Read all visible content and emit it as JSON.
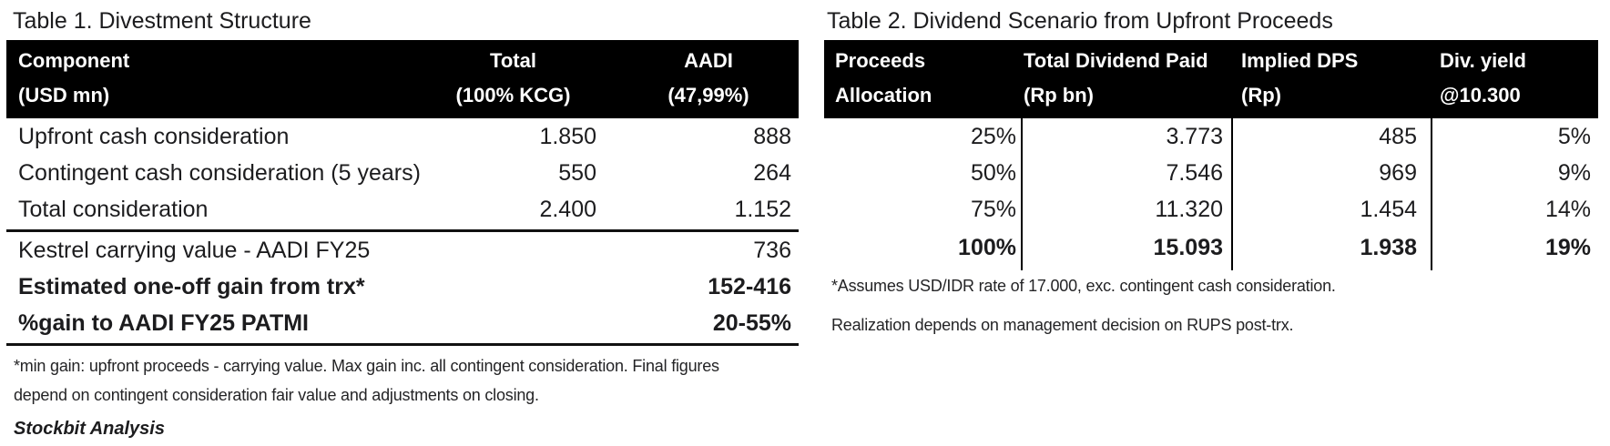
{
  "table1": {
    "title": "Table 1. Divestment Structure",
    "header": {
      "col1_line1": "Component",
      "col1_line2": "(USD mn)",
      "col2_line1": "Total",
      "col2_line2": "(100% KCG)",
      "col3_line1": "AADI",
      "col3_line2": "(47,99%)"
    },
    "rows": [
      {
        "label": "Upfront cash consideration",
        "total": "1.850",
        "aadi": "888"
      },
      {
        "label": "Contingent cash consideration (5 years)",
        "total": "550",
        "aadi": "264"
      },
      {
        "label": "Total consideration",
        "total": "2.400",
        "aadi": "1.152"
      },
      {
        "label": "Kestrel carrying value - AADI FY25",
        "total": "",
        "aadi": "736"
      },
      {
        "label": "Estimated one-off gain from trx*",
        "total": "",
        "aadi": "152-416"
      },
      {
        "label": "%gain to AADI FY25 PATMI",
        "total": "",
        "aadi": "20-55%"
      }
    ],
    "footnote_line1": "*min gain: upfront proceeds - carrying value. Max gain inc. all contingent consideration. Final figures",
    "footnote_line2": "depend on contingent consideration fair value and adjustments on closing.",
    "attribution": "Stockbit Analysis"
  },
  "table2": {
    "title": "Table 2. Dividend Scenario from Upfront Proceeds",
    "header": {
      "col1_line1": "Proceeds",
      "col1_line2": "Allocation",
      "col2_line1": "Total Dividend Paid",
      "col2_line2": "(Rp bn)",
      "col3_line1": "Implied DPS",
      "col3_line2": "(Rp)",
      "col4_line1": "Div. yield",
      "col4_line2": "@10.300"
    },
    "rows": [
      {
        "allocation": "25%",
        "dividend": "3.773",
        "dps": "485",
        "yield": "5%"
      },
      {
        "allocation": "50%",
        "dividend": "7.546",
        "dps": "969",
        "yield": "9%"
      },
      {
        "allocation": "75%",
        "dividend": "11.320",
        "dps": "1.454",
        "yield": "14%"
      },
      {
        "allocation": "100%",
        "dividend": "15.093",
        "dps": "1.938",
        "yield": "19%"
      }
    ],
    "footnote1": "*Assumes USD/IDR rate of 17.000, exc. contingent cash consideration.",
    "footnote2": "Realization depends on management decision on RUPS post-trx."
  },
  "colors": {
    "header_bg": "#000000",
    "header_text": "#ffffff",
    "body_text": "#1c1c1e"
  }
}
